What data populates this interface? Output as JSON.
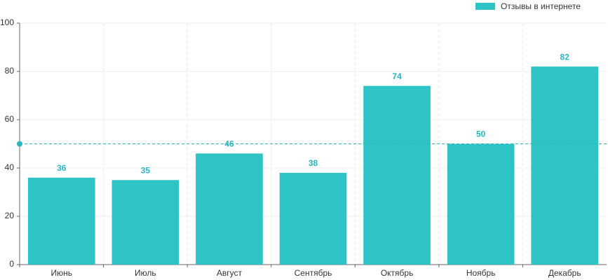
{
  "chart_data": {
    "type": "bar",
    "categories": [
      "Июнь",
      "Июль",
      "Август",
      "Сентябрь",
      "Октябрь",
      "Ноябрь",
      "Декабрь"
    ],
    "series": [
      {
        "name": "Отзывы в интернете",
        "color": "#2ec4c6",
        "values": [
          36,
          35,
          46,
          38,
          74,
          50,
          82
        ]
      }
    ],
    "ylim": [
      0,
      100
    ],
    "yticks": [
      0,
      20,
      40,
      60,
      80,
      100
    ],
    "grid": true,
    "reference_line": 50,
    "legend": "top-right"
  }
}
